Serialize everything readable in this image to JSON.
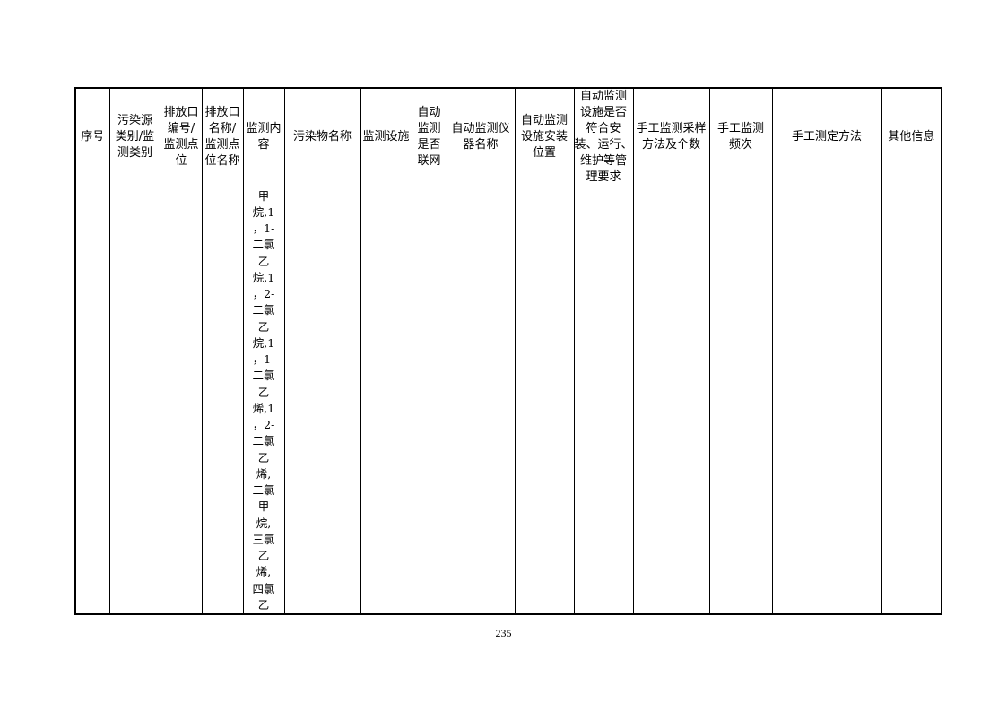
{
  "table": {
    "headers": [
      [
        "序号"
      ],
      [
        "污染源",
        "类别/监",
        "测类别"
      ],
      [
        "排放口",
        "编号/",
        "监测点",
        "位"
      ],
      [
        "排放口",
        "名称/",
        "监测点",
        "位名称"
      ],
      [
        "监测内",
        "容"
      ],
      [
        "污染物名称"
      ],
      [
        "监测设施"
      ],
      [
        "自动",
        "监测",
        "是否",
        "联网"
      ],
      [
        "自动监测仪",
        "器名称"
      ],
      [
        "自动监测",
        "设施安装",
        "位置"
      ],
      [
        "自动监测",
        "设施是否",
        "符合安",
        "装、运行、",
        "维护等管",
        "理要求"
      ],
      [
        "手工监测采样",
        "方法及个数"
      ],
      [
        "手工监测",
        "频次"
      ],
      [
        "手工测定方法"
      ],
      [
        "其他信息"
      ]
    ],
    "rows": [
      {
        "monitoring_content_lines": [
          "甲",
          "烷,1",
          "，1-",
          "二氯",
          "乙",
          "烷,1",
          "，2-",
          "二氯",
          "乙",
          "烷,1",
          "，1-",
          "二氯",
          "乙",
          "烯,1",
          "，2-",
          "二氯",
          "乙",
          "烯,",
          "二氯",
          "甲",
          "烷,",
          "三氯",
          "乙",
          "烯,",
          "四氯",
          "乙"
        ]
      }
    ]
  },
  "page_number": "235"
}
